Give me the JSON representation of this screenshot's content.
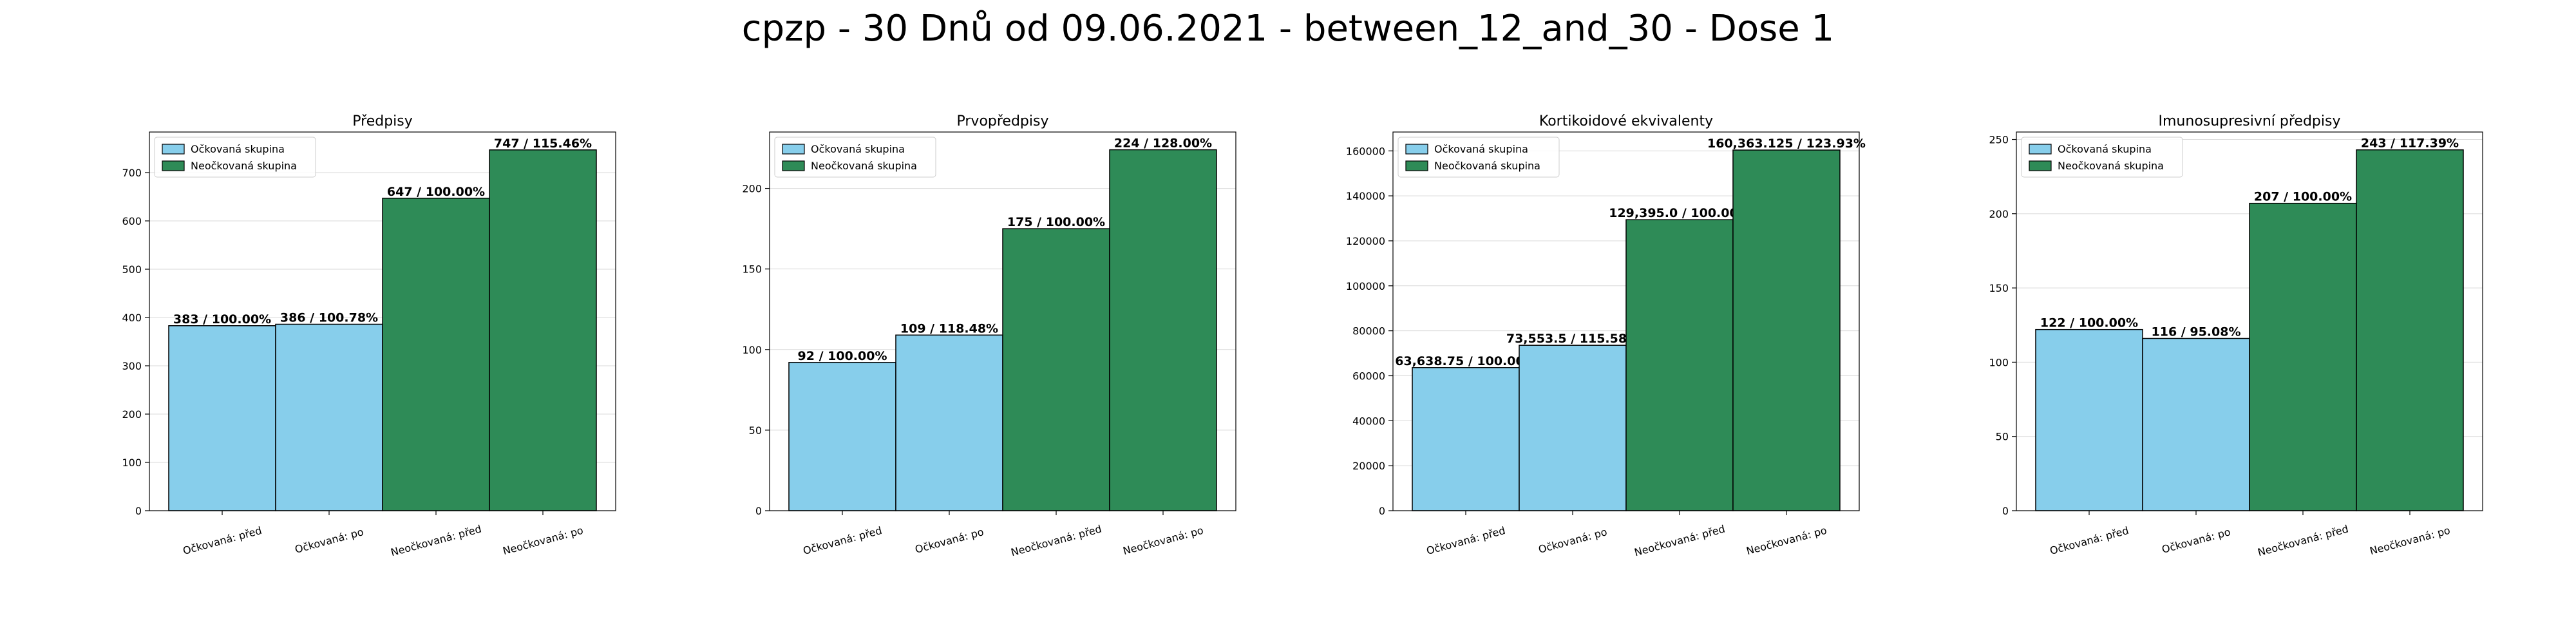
{
  "figure": {
    "suptitle": "cpzp - 30 Dnů od 09.06.2021 - between_12_and_30 - Dose 1"
  },
  "colors": {
    "vaccinated": "#87ceeb",
    "unvaccinated": "#2e8b57",
    "edge": "#000000",
    "grid": "#d9d9d9"
  },
  "chart_data": [
    {
      "type": "bar",
      "title": "Předpisy",
      "categories": [
        "Očkovaná: před",
        "Očkovaná: po",
        "Neočkovaná: před",
        "Neočkovaná: po"
      ],
      "values": [
        383,
        386,
        647,
        747
      ],
      "bar_labels": [
        "383 / 100.00%",
        "386 / 100.78%",
        "647 / 100.00%",
        "747 / 115.46%"
      ],
      "groups": [
        "vaccinated",
        "vaccinated",
        "unvaccinated",
        "unvaccinated"
      ],
      "legend": [
        "Očkovaná skupina",
        "Neočkovaná skupina"
      ],
      "legend_position": "upper left",
      "ylim": [
        0,
        784
      ],
      "yticks": [
        0,
        100,
        200,
        300,
        400,
        500,
        600,
        700
      ],
      "ytick_labels": [
        "0",
        "100",
        "200",
        "300",
        "400",
        "500",
        "600",
        "700"
      ],
      "grid": "horizontal"
    },
    {
      "type": "bar",
      "title": "Prvopředpisy",
      "categories": [
        "Očkovaná: před",
        "Očkovaná: po",
        "Neočkovaná: před",
        "Neočkovaná: po"
      ],
      "values": [
        92,
        109,
        175,
        224
      ],
      "bar_labels": [
        "92 / 100.00%",
        "109 / 118.48%",
        "175 / 100.00%",
        "224 / 128.00%"
      ],
      "groups": [
        "vaccinated",
        "vaccinated",
        "unvaccinated",
        "unvaccinated"
      ],
      "legend": [
        "Očkovaná skupina",
        "Neočkovaná skupina"
      ],
      "legend_position": "upper left",
      "ylim": [
        0,
        235
      ],
      "yticks": [
        0,
        50,
        100,
        150,
        200
      ],
      "ytick_labels": [
        "0",
        "50",
        "100",
        "150",
        "200"
      ],
      "grid": "horizontal"
    },
    {
      "type": "bar",
      "title": "Kortikoidové ekvivalenty",
      "categories": [
        "Očkovaná: před",
        "Očkovaná: po",
        "Neočkovaná: před",
        "Neočkovaná: po"
      ],
      "values": [
        63638.75,
        73553.5,
        129395.0,
        160363.125
      ],
      "bar_labels": [
        "63,638.75 / 100.00%",
        "73,553.5 / 115.58%",
        "129,395.0 / 100.00%",
        "160,363.125 / 123.93%"
      ],
      "groups": [
        "vaccinated",
        "vaccinated",
        "unvaccinated",
        "unvaccinated"
      ],
      "legend": [
        "Očkovaná skupina",
        "Neočkovaná skupina"
      ],
      "legend_position": "upper left",
      "ylim": [
        0,
        168381
      ],
      "yticks": [
        0,
        20000,
        40000,
        60000,
        80000,
        100000,
        120000,
        140000,
        160000
      ],
      "ytick_labels": [
        "0",
        "20000",
        "40000",
        "60000",
        "80000",
        "100000",
        "120000",
        "140000",
        "160000"
      ],
      "grid": "horizontal"
    },
    {
      "type": "bar",
      "title": "Imunosupresivní předpisy",
      "categories": [
        "Očkovaná: před",
        "Očkovaná: po",
        "Neočkovaná: před",
        "Neočkovaná: po"
      ],
      "values": [
        122,
        116,
        207,
        243
      ],
      "bar_labels": [
        "122 / 100.00%",
        "116 / 95.08%",
        "207 / 100.00%",
        "243 / 117.39%"
      ],
      "groups": [
        "vaccinated",
        "vaccinated",
        "unvaccinated",
        "unvaccinated"
      ],
      "legend": [
        "Očkovaná skupina",
        "Neočkovaná skupina"
      ],
      "legend_position": "upper left",
      "ylim": [
        0,
        255
      ],
      "yticks": [
        0,
        50,
        100,
        150,
        200,
        250
      ],
      "ytick_labels": [
        "0",
        "50",
        "100",
        "150",
        "200",
        "250"
      ],
      "grid": "horizontal"
    }
  ]
}
